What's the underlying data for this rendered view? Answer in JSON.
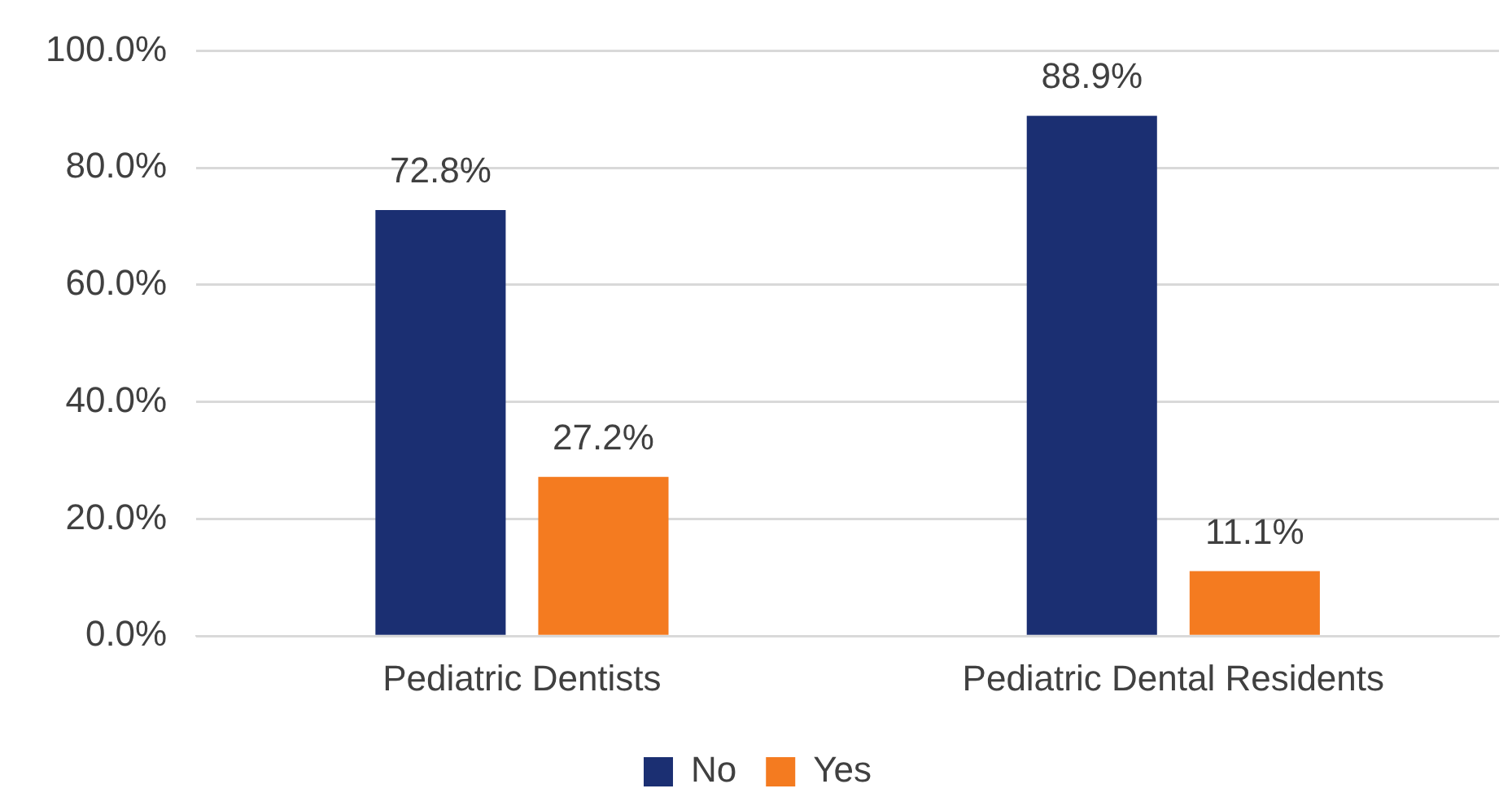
{
  "chart_data": {
    "type": "bar",
    "categories": [
      "Pediatric Dentists",
      "Pediatric Dental Residents"
    ],
    "series": [
      {
        "name": "No",
        "color": "#1b2f72",
        "values": [
          72.8,
          88.9
        ],
        "value_labels": [
          "72.8%",
          "88.9%"
        ]
      },
      {
        "name": "Yes",
        "color": "#f47b20",
        "values": [
          27.2,
          11.1
        ],
        "value_labels": [
          "27.2%",
          "11.1%"
        ]
      }
    ],
    "ylim": [
      0,
      100
    ],
    "yticks": [
      {
        "value": 0,
        "label": "0.0%"
      },
      {
        "value": 20,
        "label": "20.0%"
      },
      {
        "value": 40,
        "label": "40.0%"
      },
      {
        "value": 60,
        "label": "60.0%"
      },
      {
        "value": 80,
        "label": "80.0%"
      },
      {
        "value": 100,
        "label": "100.0%"
      }
    ],
    "grid": "y",
    "legend": "bottom"
  }
}
